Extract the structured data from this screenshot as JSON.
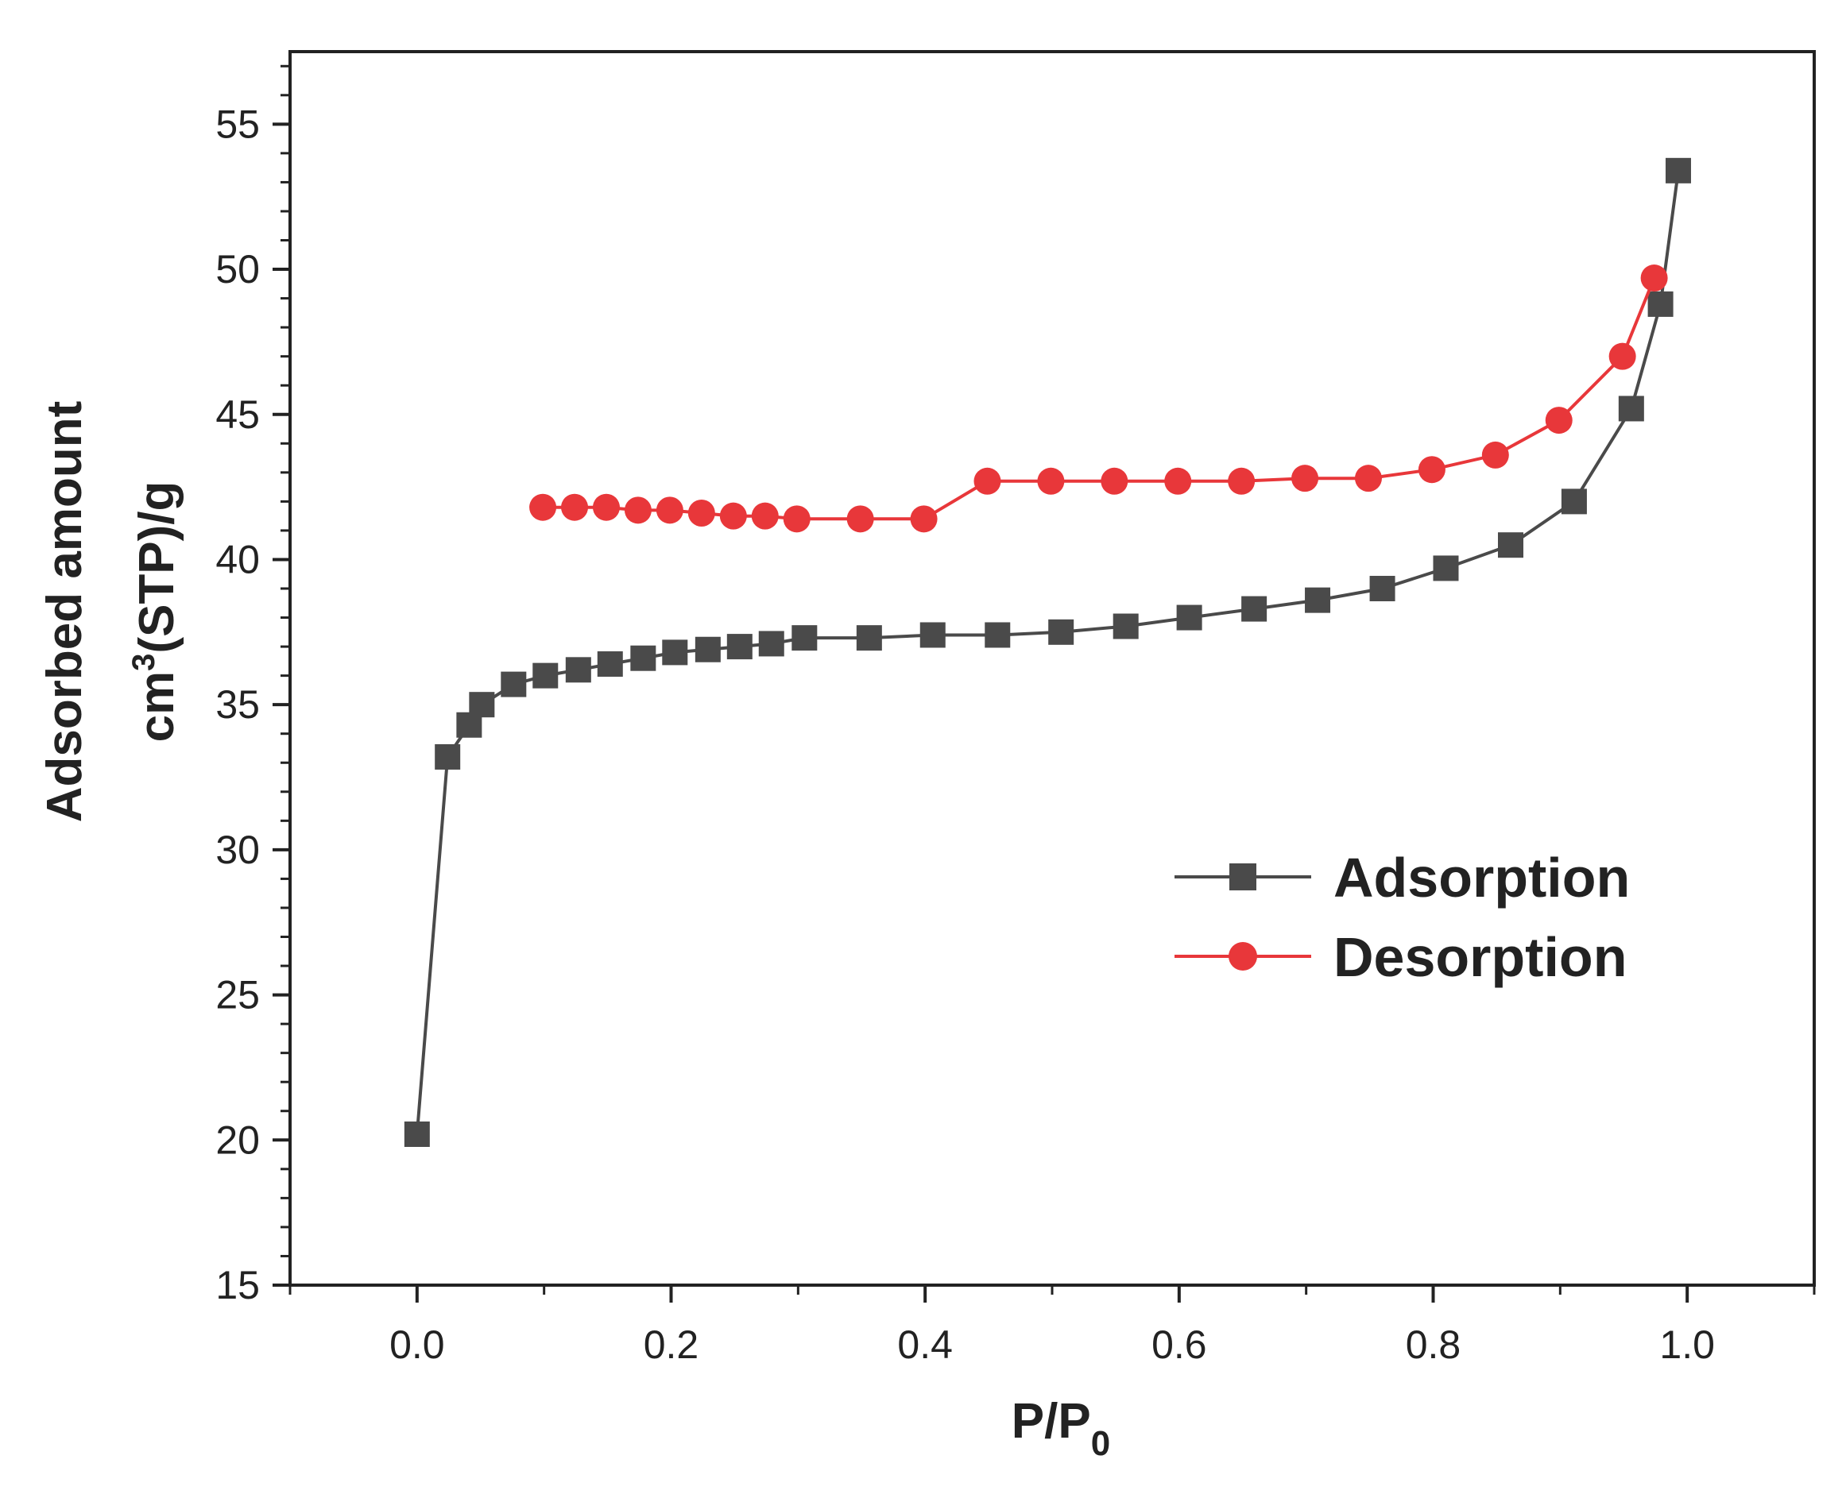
{
  "chart_data": {
    "type": "line",
    "title": "",
    "xlabel": {
      "main": "P/P",
      "sub": "0"
    },
    "ylabel": {
      "line1": "Adsorbed amount",
      "line2_pre": "cm",
      "line2_sup": "3",
      "line2_post": "(STP)/g"
    },
    "xlim": [
      -0.1,
      1.1
    ],
    "ylim": [
      15,
      57.5
    ],
    "xticks": [
      0.0,
      0.2,
      0.4,
      0.6,
      0.8,
      1.0
    ],
    "xtick_labels": [
      "0.0",
      "0.2",
      "0.4",
      "0.6",
      "0.8",
      "1.0"
    ],
    "yticks": [
      15,
      20,
      25,
      30,
      35,
      40,
      45,
      50,
      55
    ],
    "ytick_labels": [
      "15",
      "20",
      "25",
      "30",
      "35",
      "40",
      "45",
      "50",
      "55"
    ],
    "legend_position": "center-right",
    "series": [
      {
        "name": "Adsorption",
        "color": "#4a4a4a",
        "marker": "square",
        "x": [
          0.0,
          0.024,
          0.041,
          0.051,
          0.076,
          0.101,
          0.127,
          0.152,
          0.178,
          0.203,
          0.229,
          0.254,
          0.279,
          0.305,
          0.356,
          0.406,
          0.457,
          0.507,
          0.558,
          0.608,
          0.659,
          0.709,
          0.76,
          0.81,
          0.861,
          0.911,
          0.956,
          0.979,
          0.993
        ],
        "y": [
          20.2,
          33.2,
          34.3,
          35.0,
          35.7,
          36.0,
          36.2,
          36.4,
          36.6,
          36.8,
          36.9,
          37.0,
          37.1,
          37.3,
          37.3,
          37.4,
          37.4,
          37.5,
          37.7,
          38.0,
          38.3,
          38.6,
          39.0,
          39.7,
          40.5,
          42.0,
          45.2,
          48.8,
          53.4
        ]
      },
      {
        "name": "Desorption",
        "color": "#e8373a",
        "marker": "circle",
        "x": [
          0.099,
          0.124,
          0.149,
          0.174,
          0.199,
          0.224,
          0.249,
          0.274,
          0.299,
          0.349,
          0.399,
          0.449,
          0.499,
          0.549,
          0.599,
          0.649,
          0.699,
          0.749,
          0.799,
          0.849,
          0.899,
          0.949,
          0.974
        ],
        "y": [
          41.8,
          41.8,
          41.8,
          41.7,
          41.7,
          41.6,
          41.5,
          41.5,
          41.4,
          41.4,
          41.4,
          42.7,
          42.7,
          42.7,
          42.7,
          42.7,
          42.8,
          42.8,
          43.1,
          43.6,
          44.8,
          47.0,
          49.7
        ]
      }
    ]
  }
}
